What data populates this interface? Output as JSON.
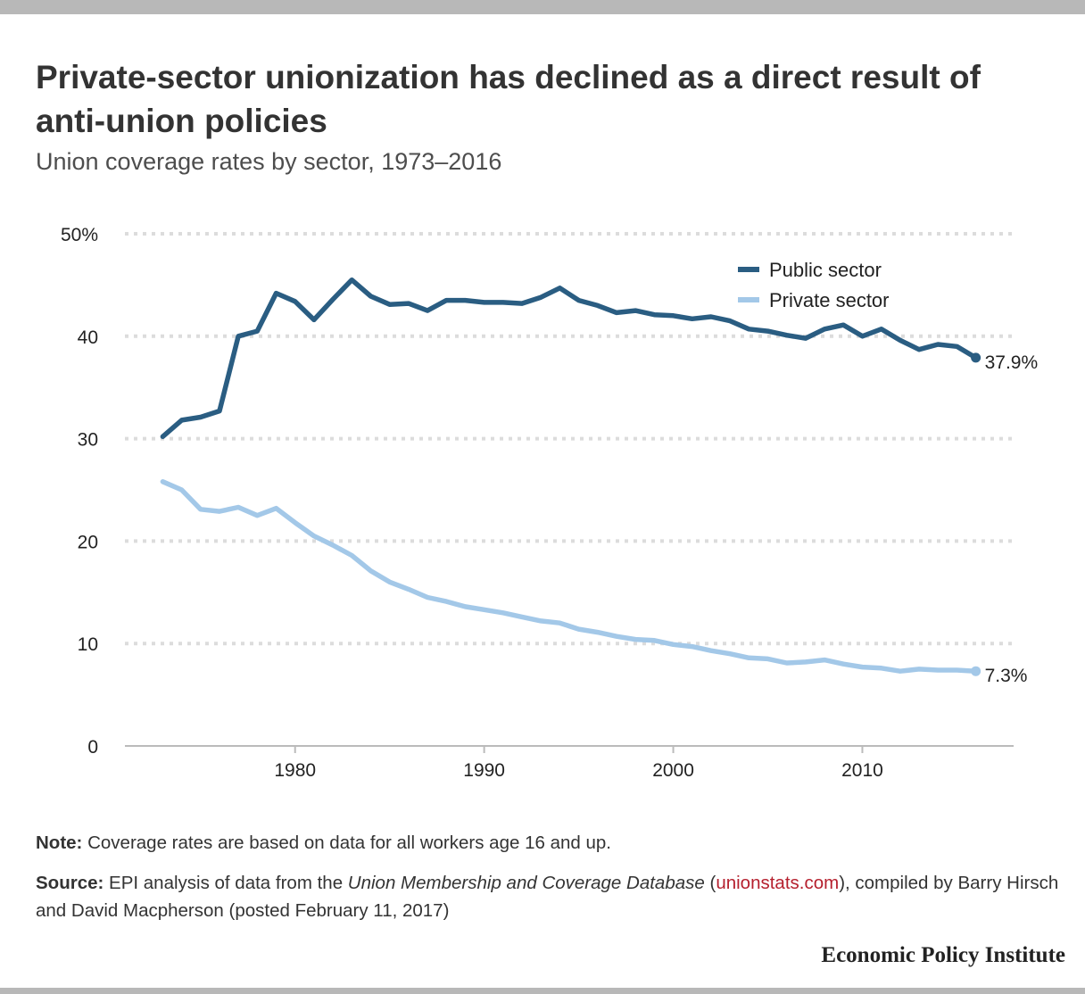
{
  "title": "Private-sector unionization has declined as a direct result of anti-union policies",
  "subtitle": "Union coverage rates by sector, 1973–2016",
  "note": {
    "label": "Note:",
    "text": " Coverage rates are based on data for all workers age 16 and up."
  },
  "source": {
    "label": "Source:",
    "text_before": " EPI analysis of data from the ",
    "italic": "Union Membership and Coverage Database",
    "paren_open": " (",
    "link": "unionstats.com",
    "text_after": "), compiled by Barry Hirsch and David Macpherson (posted February 11, 2017)"
  },
  "brand": "Economic Policy Institute",
  "colors": {
    "public": "#2a5d82",
    "private": "#a3c8e8",
    "grid": "#dcdcdc",
    "axis": "#bbbbbb",
    "link": "#b5202e"
  },
  "chart_data": {
    "type": "line",
    "title": "",
    "xlabel": "",
    "ylabel": "",
    "xlim": [
      1971,
      2018
    ],
    "ylim": [
      0,
      50
    ],
    "x_ticks": [
      1980,
      1990,
      2000,
      2010
    ],
    "y_ticks": [
      0,
      10,
      20,
      30,
      40,
      50
    ],
    "y_tick_labels": [
      "0",
      "10",
      "20",
      "30",
      "40",
      "50%"
    ],
    "grid": "horizontal dotted",
    "legend_position": "top-right",
    "x": [
      1973,
      1974,
      1975,
      1976,
      1977,
      1978,
      1979,
      1980,
      1981,
      1982,
      1983,
      1984,
      1985,
      1986,
      1987,
      1988,
      1989,
      1990,
      1991,
      1992,
      1993,
      1994,
      1995,
      1996,
      1997,
      1998,
      1999,
      2000,
      2001,
      2002,
      2003,
      2004,
      2005,
      2006,
      2007,
      2008,
      2009,
      2010,
      2011,
      2012,
      2013,
      2014,
      2015,
      2016
    ],
    "series": [
      {
        "name": "Public sector",
        "end_label": "37.9%",
        "values": [
          30.2,
          31.8,
          32.1,
          32.7,
          40.0,
          40.5,
          44.2,
          43.4,
          41.6,
          43.6,
          45.5,
          43.9,
          43.1,
          43.2,
          42.5,
          43.5,
          43.5,
          43.3,
          43.3,
          43.2,
          43.8,
          44.7,
          43.5,
          43.0,
          42.3,
          42.5,
          42.1,
          42.0,
          41.7,
          41.9,
          41.5,
          40.7,
          40.5,
          40.1,
          39.8,
          40.7,
          41.1,
          40.0,
          40.7,
          39.6,
          38.7,
          39.2,
          39.0,
          37.9
        ]
      },
      {
        "name": "Private sector",
        "end_label": "7.3%",
        "values": [
          25.8,
          25.0,
          23.1,
          22.9,
          23.3,
          22.5,
          23.2,
          21.8,
          20.5,
          19.6,
          18.6,
          17.1,
          16.0,
          15.3,
          14.5,
          14.1,
          13.6,
          13.3,
          13.0,
          12.6,
          12.2,
          12.0,
          11.4,
          11.1,
          10.7,
          10.4,
          10.3,
          9.9,
          9.7,
          9.3,
          9.0,
          8.6,
          8.5,
          8.1,
          8.2,
          8.4,
          8.0,
          7.7,
          7.6,
          7.3,
          7.5,
          7.4,
          7.4,
          7.3
        ]
      }
    ]
  }
}
